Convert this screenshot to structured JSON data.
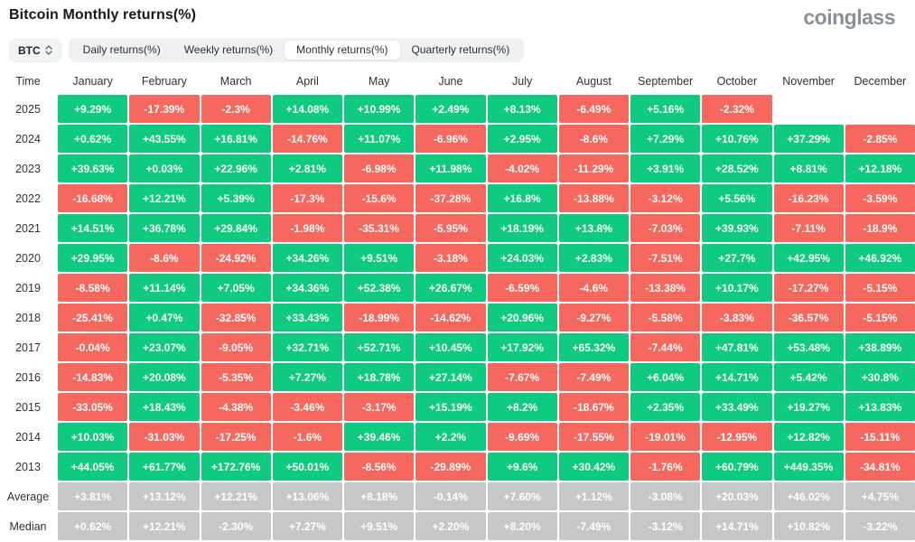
{
  "header": {
    "title": "Bitcoin Monthly returns(%)",
    "logo": "coinglass"
  },
  "toolbar": {
    "symbol_select": {
      "value": "BTC"
    },
    "tabs": [
      {
        "label": "Daily returns(%)",
        "active": false
      },
      {
        "label": "Weekly returns(%)",
        "active": false
      },
      {
        "label": "Monthly returns(%)",
        "active": true
      },
      {
        "label": "Quarterly returns(%)",
        "active": false
      }
    ]
  },
  "colors": {
    "positive": "#0ecb81",
    "negative": "#f6685e",
    "summary": "#c6c7c9"
  },
  "table": {
    "columns": [
      "Time",
      "January",
      "February",
      "March",
      "April",
      "May",
      "June",
      "July",
      "August",
      "September",
      "October",
      "November",
      "December"
    ],
    "rows": [
      {
        "label": "2025",
        "type": "year",
        "values": [
          "+9.29%",
          "-17.39%",
          "-2.3%",
          "+14.08%",
          "+10.99%",
          "+2.49%",
          "+8.13%",
          "-6.49%",
          "+5.16%",
          "-2.32%",
          "",
          ""
        ]
      },
      {
        "label": "2024",
        "type": "year",
        "values": [
          "+0.62%",
          "+43.55%",
          "+16.81%",
          "-14.76%",
          "+11.07%",
          "-6.96%",
          "+2.95%",
          "-8.6%",
          "+7.29%",
          "+10.76%",
          "+37.29%",
          "-2.85%"
        ]
      },
      {
        "label": "2023",
        "type": "year",
        "values": [
          "+39.63%",
          "+0.03%",
          "+22.96%",
          "+2.81%",
          "-6.98%",
          "+11.98%",
          "-4.02%",
          "-11.29%",
          "+3.91%",
          "+28.52%",
          "+8.81%",
          "+12.18%"
        ]
      },
      {
        "label": "2022",
        "type": "year",
        "values": [
          "-16.68%",
          "+12.21%",
          "+5.39%",
          "-17.3%",
          "-15.6%",
          "-37.28%",
          "+16.8%",
          "-13.88%",
          "-3.12%",
          "+5.56%",
          "-16.23%",
          "-3.59%"
        ]
      },
      {
        "label": "2021",
        "type": "year",
        "values": [
          "+14.51%",
          "+36.78%",
          "+29.84%",
          "-1.98%",
          "-35.31%",
          "-5.95%",
          "+18.19%",
          "+13.8%",
          "-7.03%",
          "+39.93%",
          "-7.11%",
          "-18.9%"
        ]
      },
      {
        "label": "2020",
        "type": "year",
        "values": [
          "+29.95%",
          "-8.6%",
          "-24.92%",
          "+34.26%",
          "+9.51%",
          "-3.18%",
          "+24.03%",
          "+2.83%",
          "-7.51%",
          "+27.7%",
          "+42.95%",
          "+46.92%"
        ]
      },
      {
        "label": "2019",
        "type": "year",
        "values": [
          "-8.58%",
          "+11.14%",
          "+7.05%",
          "+34.36%",
          "+52.38%",
          "+26.67%",
          "-6.59%",
          "-4.6%",
          "-13.38%",
          "+10.17%",
          "-17.27%",
          "-5.15%"
        ]
      },
      {
        "label": "2018",
        "type": "year",
        "values": [
          "-25.41%",
          "+0.47%",
          "-32.85%",
          "+33.43%",
          "-18.99%",
          "-14.62%",
          "+20.96%",
          "-9.27%",
          "-5.58%",
          "-3.83%",
          "-36.57%",
          "-5.15%"
        ]
      },
      {
        "label": "2017",
        "type": "year",
        "values": [
          "-0.04%",
          "+23.07%",
          "-9.05%",
          "+32.71%",
          "+52.71%",
          "+10.45%",
          "+17.92%",
          "+65.32%",
          "-7.44%",
          "+47.81%",
          "+53.48%",
          "+38.89%"
        ]
      },
      {
        "label": "2016",
        "type": "year",
        "values": [
          "-14.83%",
          "+20.08%",
          "-5.35%",
          "+7.27%",
          "+18.78%",
          "+27.14%",
          "-7.67%",
          "-7.49%",
          "+6.04%",
          "+14.71%",
          "+5.42%",
          "+30.8%"
        ]
      },
      {
        "label": "2015",
        "type": "year",
        "values": [
          "-33.05%",
          "+18.43%",
          "-4.38%",
          "-3.46%",
          "-3.17%",
          "+15.19%",
          "+8.2%",
          "-18.67%",
          "+2.35%",
          "+33.49%",
          "+19.27%",
          "+13.83%"
        ]
      },
      {
        "label": "2014",
        "type": "year",
        "values": [
          "+10.03%",
          "-31.03%",
          "-17.25%",
          "-1.6%",
          "+39.46%",
          "+2.2%",
          "-9.69%",
          "-17.55%",
          "-19.01%",
          "-12.95%",
          "+12.82%",
          "-15.11%"
        ]
      },
      {
        "label": "2013",
        "type": "year",
        "values": [
          "+44.05%",
          "+61.77%",
          "+172.76%",
          "+50.01%",
          "-8.56%",
          "-29.89%",
          "+9.6%",
          "+30.42%",
          "-1.76%",
          "+60.79%",
          "+449.35%",
          "-34.81%"
        ]
      },
      {
        "label": "Average",
        "type": "summary",
        "values": [
          "+3.81%",
          "+13.12%",
          "+12.21%",
          "+13.06%",
          "+8.18%",
          "-0.14%",
          "+7.60%",
          "+1.12%",
          "-3.08%",
          "+20.03%",
          "+46.02%",
          "+4.75%"
        ]
      },
      {
        "label": "Median",
        "type": "summary",
        "values": [
          "+0.62%",
          "+12.21%",
          "-2.30%",
          "+7.27%",
          "+9.51%",
          "+2.20%",
          "+8.20%",
          "-7.49%",
          "-3.12%",
          "+14.71%",
          "+10.82%",
          "-3.22%"
        ]
      }
    ]
  }
}
